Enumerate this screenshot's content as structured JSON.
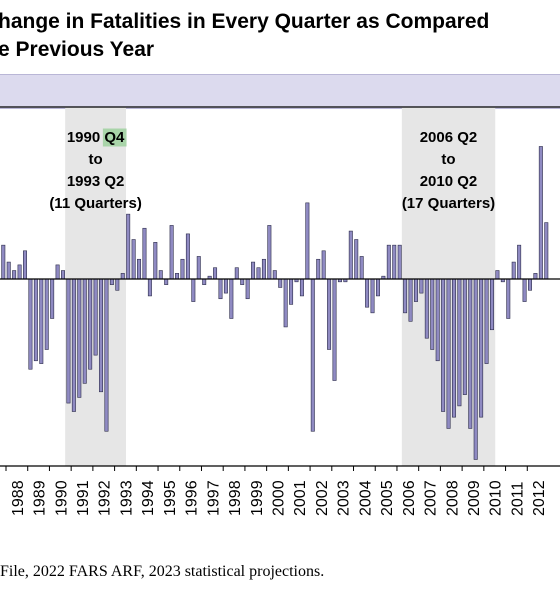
{
  "title": {
    "line1": "hange in Fatalities in Every Quarter as Compared",
    "line2": "e Previous Year"
  },
  "source": "File, 2022 FARS ARF, 2023 statistical projections.",
  "colors": {
    "bar": "#8f8ac2",
    "bar_stroke": "#2c2c4a",
    "shade": "#e6e6e6",
    "band": "#dcdaee",
    "highlight": "#a9d4a9"
  },
  "chart_data": {
    "type": "bar",
    "xlabel": "",
    "ylabel": "",
    "years": [
      "1988",
      "1989",
      "1990",
      "1991",
      "1992",
      "1993",
      "1994",
      "1995",
      "1996",
      "1997",
      "1998",
      "1999",
      "2000",
      "2001",
      "2002",
      "2003",
      "2004",
      "2005",
      "2006",
      "2007",
      "2008",
      "2009",
      "2010",
      "2011",
      "2012"
    ],
    "quarters": [
      {
        "year": 1987,
        "q": 4,
        "value": 24
      },
      {
        "year": 1988,
        "q": 1,
        "value": 12
      },
      {
        "year": 1988,
        "q": 2,
        "value": 6
      },
      {
        "year": 1988,
        "q": 3,
        "value": 10
      },
      {
        "year": 1988,
        "q": 4,
        "value": 20
      },
      {
        "year": 1989,
        "q": 1,
        "value": -64
      },
      {
        "year": 1989,
        "q": 2,
        "value": -58
      },
      {
        "year": 1989,
        "q": 3,
        "value": -60
      },
      {
        "year": 1989,
        "q": 4,
        "value": -50
      },
      {
        "year": 1990,
        "q": 1,
        "value": -28
      },
      {
        "year": 1990,
        "q": 2,
        "value": 10
      },
      {
        "year": 1990,
        "q": 3,
        "value": 6
      },
      {
        "year": 1990,
        "q": 4,
        "value": -88
      },
      {
        "year": 1991,
        "q": 1,
        "value": -94
      },
      {
        "year": 1991,
        "q": 2,
        "value": -84
      },
      {
        "year": 1991,
        "q": 3,
        "value": -74
      },
      {
        "year": 1991,
        "q": 4,
        "value": -64
      },
      {
        "year": 1992,
        "q": 1,
        "value": -54
      },
      {
        "year": 1992,
        "q": 2,
        "value": -80
      },
      {
        "year": 1992,
        "q": 3,
        "value": -108
      },
      {
        "year": 1992,
        "q": 4,
        "value": -4
      },
      {
        "year": 1993,
        "q": 1,
        "value": -8
      },
      {
        "year": 1993,
        "q": 2,
        "value": 4
      },
      {
        "year": 1993,
        "q": 3,
        "value": 46
      },
      {
        "year": 1993,
        "q": 4,
        "value": 28
      },
      {
        "year": 1994,
        "q": 1,
        "value": 14
      },
      {
        "year": 1994,
        "q": 2,
        "value": 36
      },
      {
        "year": 1994,
        "q": 3,
        "value": -12
      },
      {
        "year": 1994,
        "q": 4,
        "value": 26
      },
      {
        "year": 1995,
        "q": 1,
        "value": 6
      },
      {
        "year": 1995,
        "q": 2,
        "value": -4
      },
      {
        "year": 1995,
        "q": 3,
        "value": 38
      },
      {
        "year": 1995,
        "q": 4,
        "value": 4
      },
      {
        "year": 1996,
        "q": 1,
        "value": 14
      },
      {
        "year": 1996,
        "q": 2,
        "value": 32
      },
      {
        "year": 1996,
        "q": 3,
        "value": -16
      },
      {
        "year": 1996,
        "q": 4,
        "value": 16
      },
      {
        "year": 1997,
        "q": 1,
        "value": -4
      },
      {
        "year": 1997,
        "q": 2,
        "value": 2
      },
      {
        "year": 1997,
        "q": 3,
        "value": 8
      },
      {
        "year": 1997,
        "q": 4,
        "value": -14
      },
      {
        "year": 1998,
        "q": 1,
        "value": -10
      },
      {
        "year": 1998,
        "q": 2,
        "value": -28
      },
      {
        "year": 1998,
        "q": 3,
        "value": 8
      },
      {
        "year": 1998,
        "q": 4,
        "value": -4
      },
      {
        "year": 1999,
        "q": 1,
        "value": -14
      },
      {
        "year": 1999,
        "q": 2,
        "value": 12
      },
      {
        "year": 1999,
        "q": 3,
        "value": 8
      },
      {
        "year": 1999,
        "q": 4,
        "value": 14
      },
      {
        "year": 2000,
        "q": 1,
        "value": 38
      },
      {
        "year": 2000,
        "q": 2,
        "value": 6
      },
      {
        "year": 2000,
        "q": 3,
        "value": -6
      },
      {
        "year": 2000,
        "q": 4,
        "value": -34
      },
      {
        "year": 2001,
        "q": 1,
        "value": -18
      },
      {
        "year": 2001,
        "q": 2,
        "value": -2
      },
      {
        "year": 2001,
        "q": 3,
        "value": -12
      },
      {
        "year": 2001,
        "q": 4,
        "value": 54
      },
      {
        "year": 2002,
        "q": 1,
        "value": -108
      },
      {
        "year": 2002,
        "q": 2,
        "value": 14
      },
      {
        "year": 2002,
        "q": 3,
        "value": 20
      },
      {
        "year": 2002,
        "q": 4,
        "value": -50
      },
      {
        "year": 2003,
        "q": 1,
        "value": -72
      },
      {
        "year": 2003,
        "q": 2,
        "value": -2
      },
      {
        "year": 2003,
        "q": 3,
        "value": -2
      },
      {
        "year": 2003,
        "q": 4,
        "value": 34
      },
      {
        "year": 2004,
        "q": 1,
        "value": 28
      },
      {
        "year": 2004,
        "q": 2,
        "value": 16
      },
      {
        "year": 2004,
        "q": 3,
        "value": -20
      },
      {
        "year": 2004,
        "q": 4,
        "value": -24
      },
      {
        "year": 2005,
        "q": 1,
        "value": -12
      },
      {
        "year": 2005,
        "q": 2,
        "value": 2
      },
      {
        "year": 2005,
        "q": 3,
        "value": 24
      },
      {
        "year": 2005,
        "q": 4,
        "value": 24
      },
      {
        "year": 2006,
        "q": 1,
        "value": 24
      },
      {
        "year": 2006,
        "q": 2,
        "value": -24
      },
      {
        "year": 2006,
        "q": 3,
        "value": -30
      },
      {
        "year": 2006,
        "q": 4,
        "value": -16
      },
      {
        "year": 2007,
        "q": 1,
        "value": -10
      },
      {
        "year": 2007,
        "q": 2,
        "value": -42
      },
      {
        "year": 2007,
        "q": 3,
        "value": -50
      },
      {
        "year": 2007,
        "q": 4,
        "value": -58
      },
      {
        "year": 2008,
        "q": 1,
        "value": -94
      },
      {
        "year": 2008,
        "q": 2,
        "value": -106
      },
      {
        "year": 2008,
        "q": 3,
        "value": -98
      },
      {
        "year": 2008,
        "q": 4,
        "value": -90
      },
      {
        "year": 2009,
        "q": 1,
        "value": -82
      },
      {
        "year": 2009,
        "q": 2,
        "value": -106
      },
      {
        "year": 2009,
        "q": 3,
        "value": -128
      },
      {
        "year": 2009,
        "q": 4,
        "value": -98
      },
      {
        "year": 2010,
        "q": 1,
        "value": -60
      },
      {
        "year": 2010,
        "q": 2,
        "value": -36
      },
      {
        "year": 2010,
        "q": 3,
        "value": 6
      },
      {
        "year": 2010,
        "q": 4,
        "value": -2
      },
      {
        "year": 2011,
        "q": 1,
        "value": -28
      },
      {
        "year": 2011,
        "q": 2,
        "value": 12
      },
      {
        "year": 2011,
        "q": 3,
        "value": 24
      },
      {
        "year": 2011,
        "q": 4,
        "value": -16
      },
      {
        "year": 2012,
        "q": 1,
        "value": -8
      },
      {
        "year": 2012,
        "q": 2,
        "value": 4
      },
      {
        "year": 2012,
        "q": 3,
        "value": 94
      },
      {
        "year": 2012,
        "q": 4,
        "value": 40
      }
    ],
    "ylim": [
      -160,
      120
    ],
    "shaded_periods": [
      {
        "start": {
          "year": 1990,
          "q": 4
        },
        "end": {
          "year": 1993,
          "q": 2
        },
        "label_lines": [
          "1990 Q4",
          "to",
          "1993 Q2",
          "(11 Quarters)"
        ],
        "highlight": "Q4"
      },
      {
        "start": {
          "year": 2006,
          "q": 2
        },
        "end": {
          "year": 2010,
          "q": 2
        },
        "label_lines": [
          "2006 Q2",
          "to",
          "2010 Q2",
          "(17 Quarters)"
        ]
      }
    ]
  }
}
